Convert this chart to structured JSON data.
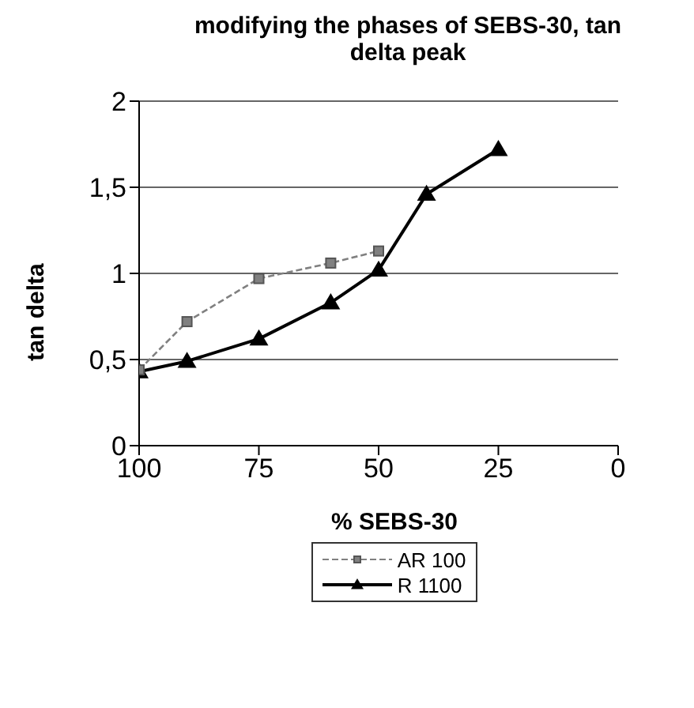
{
  "chart_data": {
    "type": "line",
    "title": "modifying the phases of SEBS-30, tan delta peak",
    "xlabel": "% SEBS-30",
    "ylabel": "tan delta",
    "x": [
      100,
      90,
      75,
      60,
      50,
      40,
      25
    ],
    "series": [
      {
        "name": "AR 100",
        "color": "#808080",
        "values": [
          0.44,
          0.72,
          0.97,
          1.06,
          1.13,
          null,
          null
        ],
        "marker": "square",
        "line_style": "dashed"
      },
      {
        "name": "R 1100",
        "color": "#000000",
        "values": [
          0.43,
          0.49,
          0.62,
          0.83,
          1.02,
          1.46,
          1.72
        ],
        "marker": "triangle",
        "line_style": "solid"
      }
    ],
    "xlim": [
      100,
      0
    ],
    "xticks": [
      100,
      75,
      50,
      25,
      0
    ],
    "ylim": [
      0,
      2
    ],
    "yticks": [
      0,
      {
        "value": 0.5,
        "label": "0,5"
      },
      1,
      {
        "value": 1.5,
        "label": "1,5"
      },
      2
    ],
    "grid": "y",
    "legend": "bottom"
  }
}
